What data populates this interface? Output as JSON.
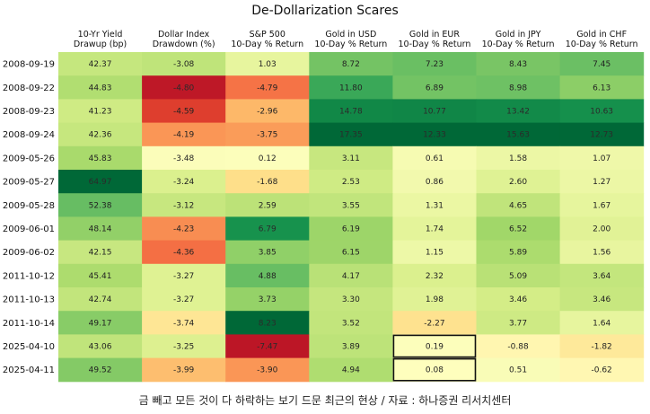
{
  "chart_data": {
    "type": "heatmap",
    "title": "De-Dollarization Scares",
    "columns": [
      [
        "10-Yr Yield",
        "Drawup (bp)"
      ],
      [
        "Dollar Index",
        "Drawdown (%)"
      ],
      [
        "S&P 500",
        "10-Day % Return"
      ],
      [
        "Gold in USD",
        "10-Day % Return"
      ],
      [
        "Gold in EUR",
        "10-Day % Return"
      ],
      [
        "Gold in JPY",
        "10-Day % Return"
      ],
      [
        "Gold in CHF",
        "10-Day % Return"
      ]
    ],
    "rows": [
      "2008-09-19",
      "2008-09-22",
      "2008-09-23",
      "2008-09-24",
      "2009-05-26",
      "2009-05-27",
      "2009-05-28",
      "2009-06-01",
      "2009-06-02",
      "2011-10-12",
      "2011-10-13",
      "2011-10-14",
      "2025-04-10",
      "2025-04-11"
    ],
    "values": [
      [
        42.37,
        -3.08,
        1.03,
        8.72,
        7.23,
        8.43,
        7.45
      ],
      [
        44.83,
        -4.8,
        -4.79,
        11.8,
        6.89,
        8.98,
        6.13
      ],
      [
        41.23,
        -4.59,
        -2.96,
        14.78,
        10.77,
        13.42,
        10.63
      ],
      [
        42.36,
        -4.19,
        -3.75,
        17.35,
        12.33,
        15.63,
        12.73
      ],
      [
        45.83,
        -3.48,
        0.12,
        3.11,
        0.61,
        1.58,
        1.07
      ],
      [
        64.97,
        -3.24,
        -1.68,
        2.53,
        0.86,
        2.6,
        1.27
      ],
      [
        52.38,
        -3.12,
        2.59,
        3.55,
        1.31,
        4.65,
        1.67
      ],
      [
        48.14,
        -4.23,
        6.79,
        6.19,
        1.74,
        6.52,
        2.0
      ],
      [
        42.15,
        -4.36,
        3.85,
        6.15,
        1.15,
        5.89,
        1.56
      ],
      [
        45.41,
        -3.27,
        4.88,
        4.17,
        2.32,
        5.09,
        3.64
      ],
      [
        42.74,
        -3.27,
        3.73,
        3.3,
        1.98,
        3.46,
        3.46
      ],
      [
        49.17,
        -3.74,
        8.23,
        3.52,
        -2.27,
        3.77,
        1.64
      ],
      [
        43.06,
        -3.25,
        -7.47,
        3.89,
        0.19,
        -0.88,
        -1.82
      ],
      [
        49.52,
        -3.99,
        -3.9,
        4.94,
        0.08,
        0.51,
        -0.62
      ]
    ],
    "highlighted_cells": [
      [
        12,
        4
      ],
      [
        13,
        4
      ]
    ]
  },
  "caption": "금 빼고 모든 것이 다 하락하는 보기 드문 최근의 현상 / 자료 : 하나증권 리서치센터"
}
